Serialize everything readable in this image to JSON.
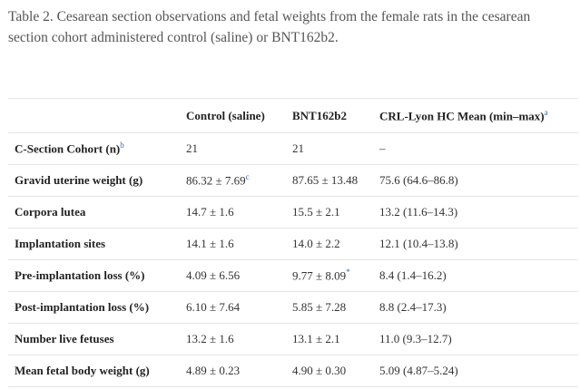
{
  "caption": {
    "label": "Table 2.",
    "text": "Cesarean section observations and fetal weights from the female rats in the cesarean section cohort administered control (saline) or BNT162b2."
  },
  "table": {
    "header": [
      {
        "text": ""
      },
      {
        "text": "Control (saline)"
      },
      {
        "text": "BNT162b2"
      },
      {
        "text": "CRL-Lyon HC Mean (min–max)",
        "sup": "a"
      }
    ],
    "rows": [
      [
        {
          "text": "C-Section Cohort (n)",
          "sup": "b"
        },
        {
          "text": "21"
        },
        {
          "text": "21"
        },
        {
          "text": "–"
        }
      ],
      [
        {
          "text": "Gravid uterine weight (g)"
        },
        {
          "text": "86.32 ± 7.69",
          "sup": "c"
        },
        {
          "text": "87.65 ± 13.48"
        },
        {
          "text": "75.6 (64.6–86.8)"
        }
      ],
      [
        {
          "text": "Corpora lutea"
        },
        {
          "text": "14.7 ± 1.6"
        },
        {
          "text": "15.5 ± 2.1"
        },
        {
          "text": "13.2 (11.6–14.3)"
        }
      ],
      [
        {
          "text": "Implantation sites"
        },
        {
          "text": "14.1 ± 1.6"
        },
        {
          "text": "14.0 ± 2.2"
        },
        {
          "text": "12.1 (10.4–13.8)"
        }
      ],
      [
        {
          "text": "Pre-implantation loss (%)"
        },
        {
          "text": "4.09 ± 6.56"
        },
        {
          "text": "9.77 ± 8.09",
          "sup": "*"
        },
        {
          "text": "8.4 (1.4–16.2)"
        }
      ],
      [
        {
          "text": "Post-implantation loss (%)"
        },
        {
          "text": "6.10 ± 7.64"
        },
        {
          "text": "5.85 ± 7.28"
        },
        {
          "text": "8.8 (2.4–17.3)"
        }
      ],
      [
        {
          "text": "Number live fetuses"
        },
        {
          "text": "13.2 ± 1.6"
        },
        {
          "text": "13.1 ± 2.1"
        },
        {
          "text": "11.0 (9.3–12.7)"
        }
      ],
      [
        {
          "text": "Mean fetal body weight (g)"
        },
        {
          "text": "4.89 ± 0.23"
        },
        {
          "text": "4.90 ± 0.30"
        },
        {
          "text": "5.09 (4.87–5.24)"
        }
      ]
    ]
  }
}
